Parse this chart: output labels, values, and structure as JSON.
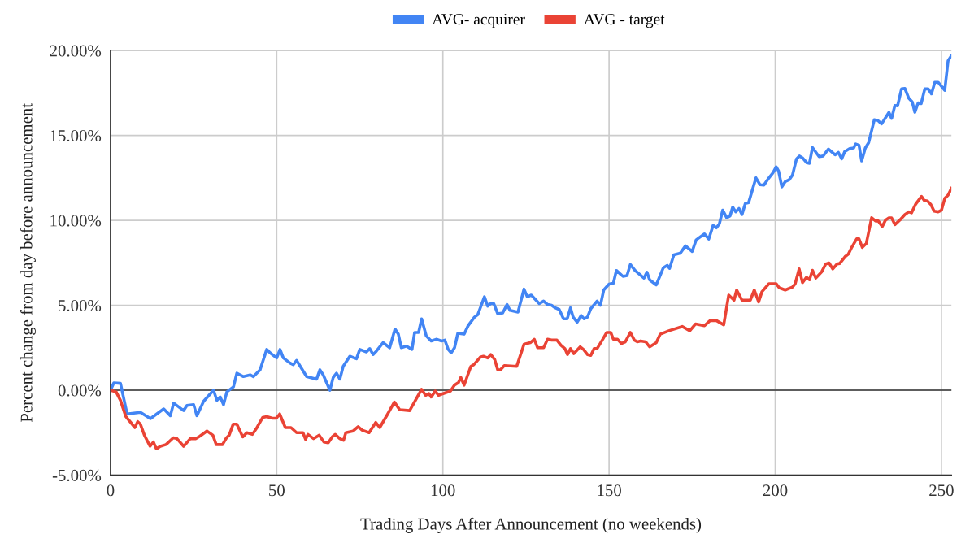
{
  "chart_data": {
    "type": "line",
    "xlabel": "Trading Days After Announcement (no weekends)",
    "ylabel": "Percent change from day before announcement",
    "xlim": [
      0,
      253
    ],
    "xticks": [
      0,
      50,
      100,
      150,
      200,
      250
    ],
    "ylim": [
      -5,
      20
    ],
    "yticks": [
      {
        "value": -5,
        "label": "-5.00%"
      },
      {
        "value": 0,
        "label": "0.00%"
      },
      {
        "value": 5,
        "label": "5.00%"
      },
      {
        "value": 10,
        "label": "10.00%"
      },
      {
        "value": 15,
        "label": "15.00%"
      },
      {
        "value": 20,
        "label": "20.00%"
      }
    ],
    "grid": true,
    "legend": "top",
    "line_style": "solid",
    "marker": "none",
    "ref_lines": [
      {
        "axis": "y",
        "value": 0,
        "color": "#333333"
      }
    ],
    "series": [
      {
        "name": "AVG- acquirer",
        "color": "#4285f4",
        "x": [
          0,
          1,
          3,
          5,
          9,
          12,
          16,
          18,
          19,
          22,
          23,
          25,
          26,
          28,
          31,
          32,
          33,
          34,
          35,
          37,
          38,
          40,
          42,
          43,
          45,
          47,
          48,
          50,
          51,
          52,
          54,
          55,
          56,
          59,
          62,
          63,
          64,
          66,
          67,
          68,
          69,
          70,
          72,
          74,
          75,
          77,
          78,
          79,
          80,
          82,
          84,
          85.6,
          86.6,
          87.5,
          89,
          90.7,
          91.5,
          92.7,
          93.6,
          95,
          96.5,
          98,
          99.6,
          100.6,
          101.6,
          102.5,
          103.5,
          104.5,
          106.4,
          107.6,
          109.5,
          110.5,
          112.5,
          113.5,
          114.4,
          115.3,
          116.5,
          118,
          119.3,
          120.2,
          122.6,
          124.4,
          125.4,
          126.6,
          129,
          130.3,
          131.5,
          132.7,
          133.8,
          135,
          136.3,
          137.4,
          138.4,
          139.2,
          140.4,
          141.6,
          142.5,
          143.5,
          144.5,
          146.4,
          147.4,
          148.4,
          150,
          151.3,
          152.2,
          154.2,
          155.4,
          156.4,
          157.8,
          159.3,
          160.5,
          161.4,
          162.2,
          164.2,
          166.3,
          167.5,
          168.2,
          169.5,
          171.4,
          173,
          175,
          176.2,
          178.7,
          180,
          181.3,
          182.3,
          183.2,
          184.2,
          185.4,
          186.4,
          187.2,
          188.1,
          189.1,
          190,
          191,
          192,
          194.2,
          195.4,
          196.6,
          198.1,
          199.3,
          200.3,
          201,
          202,
          203,
          204.2,
          205.2,
          206.4,
          207.3,
          208.3,
          209.5,
          210.3,
          211.2,
          213.2,
          214.4,
          216,
          218,
          219,
          220,
          220.9,
          222.4,
          223.6,
          224.2,
          225.2,
          226,
          227.1,
          228.1,
          229.8,
          230.8,
          232,
          234.2,
          235,
          236,
          236.8,
          238,
          239,
          240.2,
          241.2,
          242,
          243,
          243.9,
          245,
          246,
          247,
          248,
          249,
          251,
          252,
          253
        ],
        "values": [
          0.0,
          0.43,
          0.4,
          -1.4,
          -1.3,
          -1.67,
          -1.1,
          -1.5,
          -0.76,
          -1.2,
          -0.9,
          -0.85,
          -1.5,
          -0.66,
          0.0,
          -0.6,
          -0.4,
          -0.85,
          -0.1,
          0.2,
          1.0,
          0.8,
          0.9,
          0.8,
          1.2,
          2.4,
          2.2,
          1.9,
          2.4,
          1.9,
          1.6,
          1.5,
          1.75,
          0.8,
          0.65,
          1.2,
          0.9,
          0.0,
          0.75,
          1.0,
          0.65,
          1.4,
          2.0,
          1.85,
          2.4,
          2.25,
          2.45,
          2.1,
          2.3,
          2.8,
          2.5,
          3.6,
          3.3,
          2.5,
          2.6,
          2.4,
          3.4,
          3.4,
          4.2,
          3.2,
          2.9,
          3.0,
          2.9,
          2.95,
          2.4,
          2.2,
          2.5,
          3.35,
          3.3,
          3.8,
          4.3,
          4.45,
          5.5,
          4.95,
          5.1,
          5.1,
          4.5,
          4.55,
          5.05,
          4.7,
          4.6,
          5.95,
          5.5,
          5.6,
          5.1,
          5.25,
          5.05,
          5.0,
          4.85,
          4.75,
          4.2,
          4.2,
          4.85,
          4.3,
          4.0,
          4.4,
          4.2,
          4.3,
          4.8,
          5.25,
          5.0,
          5.9,
          6.25,
          6.3,
          7.05,
          6.7,
          6.75,
          7.4,
          7.05,
          6.8,
          6.6,
          6.95,
          6.5,
          6.2,
          7.2,
          7.35,
          7.17,
          7.97,
          8.06,
          8.5,
          8.17,
          8.85,
          9.2,
          8.9,
          9.7,
          9.56,
          9.8,
          10.6,
          10.15,
          10.26,
          10.78,
          10.5,
          10.7,
          10.34,
          11.0,
          11.05,
          12.5,
          12.1,
          12.08,
          12.5,
          12.8,
          13.15,
          12.9,
          11.97,
          12.28,
          12.39,
          12.67,
          13.62,
          13.79,
          13.66,
          13.39,
          13.36,
          14.29,
          13.75,
          13.79,
          14.2,
          13.86,
          14.0,
          13.62,
          14.05,
          14.23,
          14.26,
          14.5,
          14.42,
          13.5,
          14.26,
          14.57,
          15.92,
          15.89,
          15.68,
          16.36,
          16.0,
          16.76,
          16.74,
          17.74,
          17.77,
          17.18,
          16.98,
          16.36,
          16.92,
          16.87,
          17.74,
          17.74,
          17.45,
          18.13,
          18.13,
          17.66,
          19.4,
          19.7
        ]
      },
      {
        "name": "AVG - target",
        "color": "#ea4335",
        "x": [
          0,
          1.7,
          3,
          4.6,
          6.3,
          7.3,
          8.2,
          9,
          10.2,
          11.9,
          12.9,
          13.8,
          15,
          16.7,
          18.9,
          20,
          22,
          24,
          25.7,
          26.9,
          29,
          30.8,
          31.8,
          33.7,
          34.9,
          35.7,
          36.9,
          38,
          39.8,
          41,
          42.7,
          43.9,
          45.8,
          47,
          48.7,
          49.9,
          50.9,
          52.6,
          54.3,
          56,
          57.9,
          58.7,
          59.4,
          61.1,
          62.8,
          64.2,
          65.5,
          66.7,
          67.6,
          69,
          70.1,
          70.8,
          73,
          74.5,
          75.7,
          77.8,
          79.8,
          81,
          83.4,
          85.4,
          87,
          90,
          93.6,
          94.8,
          95.8,
          96.5,
          97.7,
          98.7,
          102.3,
          103.5,
          104.7,
          105.4,
          106.4,
          108.4,
          109.3,
          111.3,
          112.2,
          113.5,
          114.4,
          115.6,
          116.5,
          117.3,
          118.5,
          122.2,
          124.4,
          126.3,
          127.5,
          128.5,
          130.3,
          131.5,
          132.7,
          134.3,
          135.5,
          136.7,
          137.5,
          138.4,
          139.4,
          141.3,
          142.3,
          143.5,
          144.5,
          145.5,
          146.4,
          148.1,
          149.3,
          150.5,
          151.3,
          152.5,
          153.7,
          154.9,
          156.4,
          157.6,
          158.5,
          159.5,
          161,
          162.2,
          164.2,
          165.4,
          168,
          172,
          174.3,
          176,
          178.7,
          180.4,
          182.3,
          184.5,
          186,
          187.6,
          188.4,
          190,
          192.5,
          193.7,
          195,
          196,
          198.1,
          200.3,
          201.2,
          203,
          205.2,
          206,
          207.2,
          208.2,
          209.4,
          210.3,
          211.2,
          212.2,
          214,
          215.2,
          216.2,
          217.3,
          218.6,
          219.4,
          221,
          222,
          223,
          224.5,
          225.2,
          226.2,
          227.4,
          229,
          230.2,
          231,
          232.2,
          233.2,
          234.2,
          235,
          236,
          237.5,
          239,
          240.2,
          241,
          242.2,
          244,
          244.8,
          245.8,
          246.8,
          247.8,
          249,
          250,
          251,
          252,
          253
        ],
        "values": [
          0.0,
          -0.1,
          -0.6,
          -1.55,
          -1.95,
          -2.2,
          -1.85,
          -2.0,
          -2.65,
          -3.3,
          -3.05,
          -3.45,
          -3.3,
          -3.2,
          -2.8,
          -2.85,
          -3.3,
          -2.85,
          -2.85,
          -2.7,
          -2.4,
          -2.65,
          -3.2,
          -3.2,
          -2.8,
          -2.65,
          -2.0,
          -2.0,
          -2.75,
          -2.5,
          -2.6,
          -2.25,
          -1.6,
          -1.55,
          -1.65,
          -1.65,
          -1.4,
          -2.2,
          -2.2,
          -2.5,
          -2.5,
          -2.9,
          -2.6,
          -2.85,
          -2.65,
          -3.05,
          -3.1,
          -2.75,
          -2.6,
          -2.85,
          -2.95,
          -2.5,
          -2.4,
          -2.15,
          -2.35,
          -2.5,
          -1.9,
          -2.2,
          -1.4,
          -0.7,
          -1.15,
          -1.2,
          0.05,
          -0.3,
          -0.2,
          -0.4,
          -0.05,
          -0.3,
          -0.05,
          0.3,
          0.45,
          0.75,
          0.3,
          1.4,
          1.5,
          1.95,
          2.0,
          1.9,
          2.1,
          1.8,
          1.2,
          1.2,
          1.45,
          1.4,
          2.7,
          2.8,
          3.0,
          2.5,
          2.5,
          3.0,
          2.95,
          2.95,
          2.65,
          2.45,
          2.1,
          2.45,
          2.15,
          2.55,
          2.4,
          2.1,
          2.05,
          2.45,
          2.45,
          3.0,
          3.4,
          3.4,
          3.0,
          3.0,
          2.75,
          2.85,
          3.4,
          2.95,
          2.85,
          2.9,
          2.85,
          2.55,
          2.8,
          3.3,
          3.5,
          3.75,
          3.5,
          3.9,
          3.8,
          4.1,
          4.1,
          3.85,
          5.6,
          5.3,
          5.9,
          5.3,
          5.3,
          5.9,
          5.2,
          5.8,
          6.27,
          6.27,
          6.03,
          5.9,
          6.07,
          6.27,
          7.14,
          6.34,
          6.65,
          6.5,
          7.06,
          6.6,
          6.98,
          7.43,
          7.49,
          7.14,
          7.43,
          7.46,
          7.86,
          8.01,
          8.41,
          8.91,
          8.91,
          8.41,
          8.64,
          10.15,
          9.96,
          9.96,
          9.64,
          10.02,
          10.15,
          10.15,
          9.75,
          10.02,
          10.34,
          10.5,
          10.44,
          10.94,
          11.41,
          11.18,
          11.14,
          10.94,
          10.54,
          10.5,
          10.59,
          11.29,
          11.49,
          11.89
        ]
      }
    ]
  }
}
